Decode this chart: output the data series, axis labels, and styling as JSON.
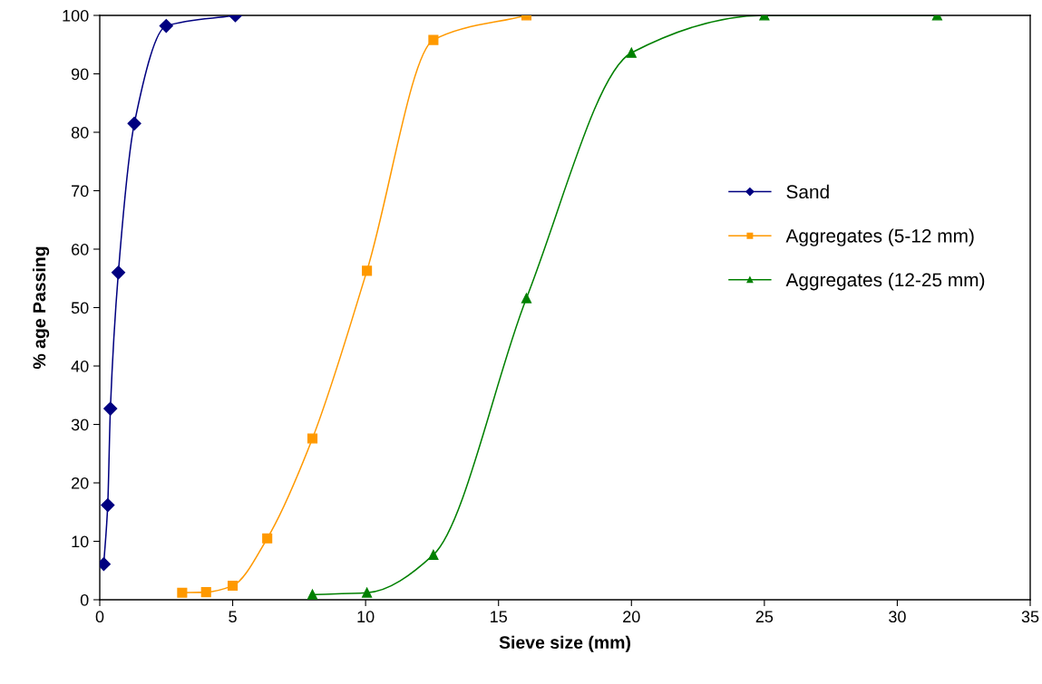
{
  "chart_data": {
    "type": "line",
    "xlabel": "Sieve size (mm)",
    "ylabel": "% age Passing",
    "xlim": [
      0,
      35
    ],
    "xticks": [
      0,
      5,
      10,
      15,
      20,
      25,
      30,
      35
    ],
    "ylim": [
      0,
      100
    ],
    "yticks": [
      0,
      10,
      20,
      30,
      40,
      50,
      60,
      70,
      80,
      90,
      100
    ],
    "grid": false,
    "legend": "right",
    "line_style": "solid",
    "series": [
      {
        "name": "Sand",
        "color": "#000080",
        "marker": "diamond",
        "x": [
          0.15,
          0.3,
          0.4,
          0.7,
          1.3,
          2.5,
          5.1
        ],
        "values": [
          6.1,
          16.2,
          32.7,
          56,
          81.5,
          98.2,
          100
        ]
      },
      {
        "name": "Aggregates (5-12 mm)",
        "color": "#ff9900",
        "marker": "square",
        "x": [
          3.1,
          4,
          5,
          6.3,
          8,
          10.05,
          12.55,
          16.05
        ],
        "values": [
          1.2,
          1.3,
          2.4,
          10.5,
          27.6,
          56.3,
          95.8,
          100
        ]
      },
      {
        "name": "Aggregates (12-25 mm)",
        "color": "#008000",
        "marker": "triangle",
        "x": [
          8,
          10.05,
          12.55,
          16.05,
          20,
          25,
          31.5
        ],
        "values": [
          0.9,
          1.2,
          7.7,
          51.6,
          93.6,
          100,
          100
        ]
      }
    ]
  }
}
